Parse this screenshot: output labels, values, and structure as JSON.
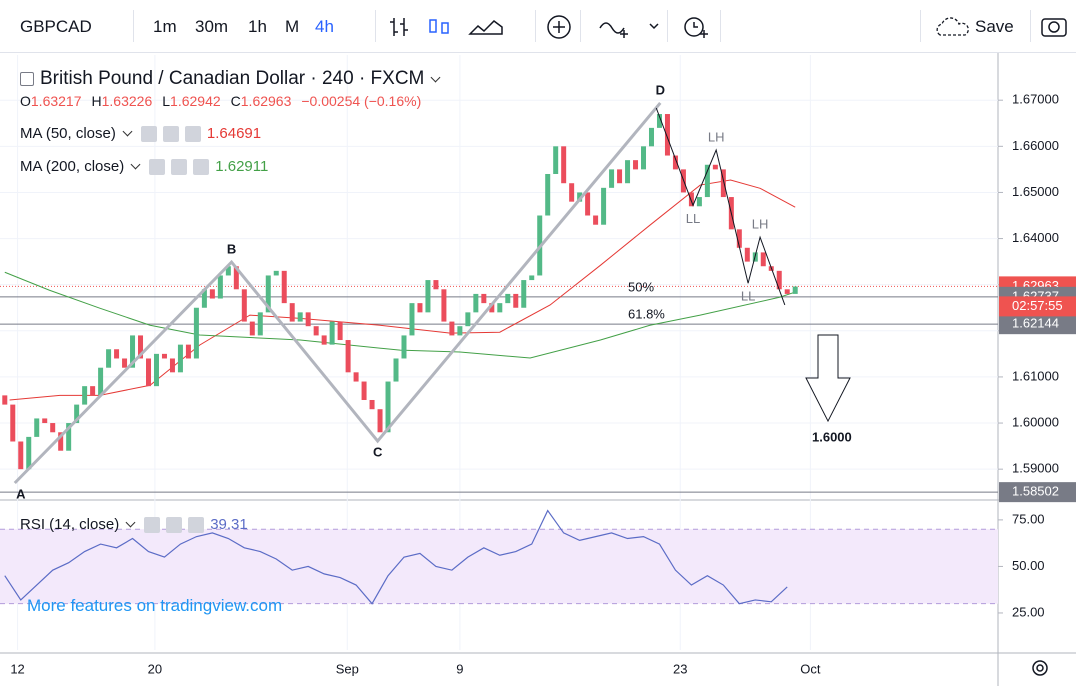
{
  "toolbar": {
    "symbol": "GBPCAD",
    "intervals": [
      "1m",
      "30m",
      "1h",
      "M",
      "4h"
    ],
    "active_interval": 4,
    "save": "Save"
  },
  "legend": {
    "title": "British Pound / Canadian Dollar · 240 · FXCM",
    "ohlc": [
      {
        "key": "O",
        "value": 1.63217
      },
      {
        "key": "H",
        "value": 1.63226
      },
      {
        "key": "L",
        "value": 1.62942
      },
      {
        "key": "C",
        "value": 1.62963
      }
    ],
    "change": "−0.00254 (−0.16%)",
    "watermark": "More features on tradingview.com"
  },
  "chart_data": {
    "type": "candlestick",
    "xlim": [
      -0.6,
      124.4
    ],
    "ylim": [
      1.5844,
      1.6798
    ],
    "yticks": [
      {
        "value": 1.67,
        "label": "1.67000"
      },
      {
        "value": 1.66,
        "label": "1.66000"
      },
      {
        "value": 1.65,
        "label": "1.65000"
      },
      {
        "value": 1.64,
        "label": "1.64000"
      },
      {
        "value": 1.63,
        "label": "1.63000"
      },
      {
        "value": 1.62,
        "label": "1.62000"
      },
      {
        "value": 1.61,
        "label": "1.61000"
      },
      {
        "value": 1.6,
        "label": "1.60000"
      },
      {
        "value": 1.59,
        "label": "1.59000"
      }
    ],
    "xticks": [
      {
        "value": 1.6,
        "label": "12"
      },
      {
        "value": 18.8,
        "label": "20"
      },
      {
        "value": 42.9,
        "label": "Sep"
      },
      {
        "value": 57,
        "label": "9"
      },
      {
        "value": 84.6,
        "label": "23"
      },
      {
        "value": 100.9,
        "label": "Oct"
      }
    ],
    "candles": {
      "up_color": "#53b987",
      "down_color": "#eb4d5c",
      "first_open": 1.606,
      "x": [
        0,
        1,
        2,
        3,
        4,
        5,
        6,
        7,
        8,
        9,
        10,
        11,
        12,
        13,
        14,
        15,
        16,
        17,
        18,
        19,
        20,
        21,
        22,
        23,
        24,
        25,
        26,
        27,
        28,
        29,
        30,
        31,
        32,
        33,
        34,
        35,
        36,
        37,
        38,
        39,
        40,
        41,
        42,
        43,
        44,
        45,
        46,
        47,
        48,
        49,
        50,
        51,
        52,
        53,
        54,
        55,
        56,
        57,
        58,
        59,
        60,
        61,
        62,
        63,
        64,
        65,
        66,
        67,
        68,
        69,
        70,
        71,
        72,
        73,
        74,
        75,
        76,
        77,
        78,
        79,
        80,
        81,
        82,
        83,
        84,
        85,
        86,
        87,
        88,
        89,
        90,
        91,
        92,
        93,
        94,
        95,
        96,
        97,
        98,
        99
      ],
      "close": [
        1.604,
        1.596,
        1.59,
        1.597,
        1.601,
        1.6,
        1.598,
        1.594,
        1.6,
        1.604,
        1.608,
        1.606,
        1.612,
        1.616,
        1.614,
        1.612,
        1.619,
        1.614,
        1.608,
        1.615,
        1.614,
        1.611,
        1.617,
        1.614,
        1.625,
        1.629,
        1.627,
        1.632,
        1.634,
        1.629,
        1.622,
        1.619,
        1.624,
        1.632,
        1.633,
        1.626,
        1.622,
        1.624,
        1.621,
        1.619,
        1.617,
        1.622,
        1.618,
        1.611,
        1.609,
        1.605,
        1.603,
        1.598,
        1.609,
        1.614,
        1.619,
        1.626,
        1.624,
        1.631,
        1.629,
        1.622,
        1.619,
        1.621,
        1.624,
        1.628,
        1.626,
        1.624,
        1.626,
        1.628,
        1.625,
        1.631,
        1.632,
        1.645,
        1.654,
        1.66,
        1.652,
        1.648,
        1.65,
        1.645,
        1.643,
        1.651,
        1.655,
        1.652,
        1.657,
        1.655,
        1.66,
        1.664,
        1.667,
        1.658,
        1.655,
        1.65,
        1.647,
        1.649,
        1.656,
        1.655,
        1.649,
        1.642,
        1.638,
        1.635,
        1.637,
        1.634,
        1.633,
        1.629,
        1.628,
        1.6296
      ]
    },
    "series": [
      {
        "name": "MA (50, close)",
        "current": 1.64691,
        "color": "#e53935",
        "x": [
          0.6,
          6.9,
          11.9,
          18.2,
          24.4,
          30.7,
          37,
          47,
          55.8,
          62,
          68.3,
          74.6,
          80.8,
          87.1,
          90.9,
          94.6,
          99
        ],
        "values": [
          1.605,
          1.606,
          1.606,
          1.6082,
          1.6169,
          1.6234,
          1.6227,
          1.6212,
          1.6195,
          1.6197,
          1.6256,
          1.6342,
          1.6429,
          1.6516,
          1.6527,
          1.6509,
          1.6468
        ]
      },
      {
        "name": "MA (200, close)",
        "current": 1.62911,
        "color": "#43a047",
        "x": [
          0,
          5.6,
          11.9,
          18.2,
          24.4,
          37,
          49.5,
          57,
          65.8,
          74.6,
          80.8,
          87.1,
          97.1,
          99
        ],
        "values": [
          1.6327,
          1.6288,
          1.6249,
          1.6212,
          1.6191,
          1.618,
          1.6158,
          1.6154,
          1.6141,
          1.618,
          1.6212,
          1.6234,
          1.6273,
          1.6284
        ]
      }
    ],
    "badges": [
      {
        "value": 1.62963,
        "color": "#ef5350",
        "style": "dotted"
      },
      {
        "value": 1.62737,
        "color": "#787b86",
        "label": "50%"
      },
      {
        "value": 1.62144,
        "color": "#787b86",
        "label": "61.8%"
      },
      {
        "value": 1.58502,
        "color": "#787b86"
      }
    ],
    "countdown": "02:57:55",
    "abcd": {
      "labels": [
        "A",
        "B",
        "C",
        "D"
      ],
      "x": [
        1.25,
        28.4,
        46.7,
        82.1
      ],
      "y": [
        1.587,
        1.6349,
        1.5961,
        1.6694
      ]
    },
    "wave": {
      "labels": [
        null,
        "LL",
        "LH",
        "LL",
        "LH",
        null
      ],
      "x": [
        81.6,
        86.2,
        89.1,
        93.1,
        94.6,
        97.7
      ],
      "y": [
        1.6683,
        1.6472,
        1.6592,
        1.6303,
        1.6403,
        1.6256
      ]
    },
    "target": {
      "value": 1.6,
      "label": "1.6000"
    },
    "rsi": {
      "name": "RSI (14, close)",
      "current": 39.31,
      "color": "#5b6cc6",
      "ylim": [
        5.1,
        83
      ],
      "band": [
        30,
        70
      ],
      "yticks": [
        {
          "value": 25,
          "label": "25.00"
        },
        {
          "value": 50,
          "label": "50.00"
        },
        {
          "value": 75,
          "label": "75.00"
        }
      ],
      "x": [
        0,
        2,
        4,
        6,
        8,
        10,
        12,
        14,
        16,
        18,
        20,
        22,
        24,
        26,
        28,
        30,
        32,
        34,
        36,
        38,
        40,
        42,
        44,
        46,
        48,
        50,
        52,
        54,
        56,
        58,
        60,
        62,
        64,
        66,
        68,
        70,
        72,
        74,
        76,
        78,
        80,
        82,
        84,
        86,
        88,
        90,
        92,
        94,
        96,
        98
      ],
      "values": [
        45,
        32,
        40,
        48,
        52,
        58,
        62,
        60,
        65,
        58,
        55,
        62,
        66,
        68,
        65,
        60,
        58,
        54,
        48,
        50,
        46,
        44,
        40,
        30,
        45,
        55,
        57,
        50,
        48,
        55,
        60,
        56,
        58,
        62,
        80,
        68,
        64,
        66,
        68,
        65,
        66,
        62,
        48,
        40,
        45,
        40,
        30,
        32,
        31,
        39
      ]
    }
  }
}
